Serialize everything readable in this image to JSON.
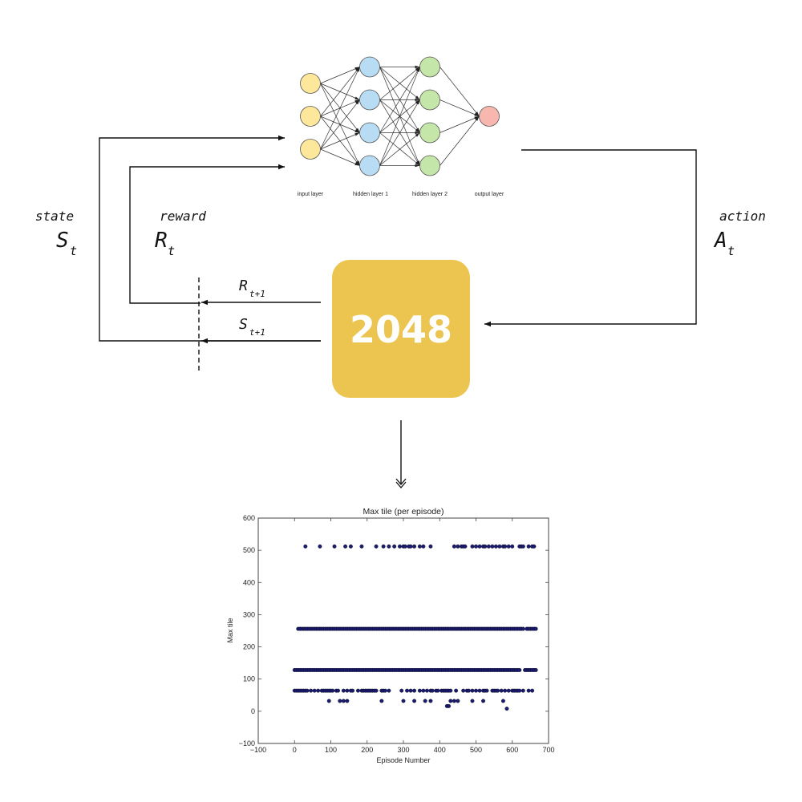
{
  "loop": {
    "state": {
      "word": "state",
      "symbol": "S",
      "sub": "t"
    },
    "reward": {
      "word": "reward",
      "symbol": "R",
      "sub": "t"
    },
    "action": {
      "word": "action",
      "symbol": "A",
      "sub": "t"
    },
    "next_reward": {
      "symbol": "R",
      "sub": "t+1"
    },
    "next_state": {
      "symbol": "S",
      "sub": "t+1"
    }
  },
  "network": {
    "layers": [
      {
        "name": "input layer",
        "nodes": 3,
        "color": "#fde79a"
      },
      {
        "name": "hidden layer 1",
        "nodes": 4,
        "color": "#b8dcf3"
      },
      {
        "name": "hidden layer 2",
        "nodes": 4,
        "color": "#c5e6a9"
      },
      {
        "name": "output layer",
        "nodes": 1,
        "color": "#f8b7ae"
      }
    ]
  },
  "tile": {
    "label": "2048",
    "color": "#ebc550"
  },
  "chart_data": {
    "type": "scatter",
    "title": "Max tile (per episode)",
    "xlabel": "Episode Number",
    "ylabel": "Max tile",
    "xlim": [
      -100,
      700
    ],
    "ylim": [
      -100,
      600
    ],
    "xticks": [
      -100,
      0,
      100,
      200,
      300,
      400,
      500,
      600,
      700
    ],
    "yticks": [
      -100,
      0,
      100,
      200,
      300,
      400,
      500,
      600
    ],
    "grid": false,
    "marker_color": "#1a1a6e",
    "series": [
      {
        "y": 512,
        "x": [
          30,
          70,
          110,
          140,
          155,
          185,
          225,
          245,
          260,
          275,
          290,
          300,
          305,
          315,
          320,
          330,
          345,
          355,
          375,
          440,
          450,
          460,
          465,
          470,
          490,
          500,
          510,
          520,
          525,
          535,
          545,
          555,
          565,
          575,
          580,
          590,
          600,
          620,
          625,
          630,
          645,
          655,
          660
        ]
      },
      {
        "y": 256,
        "x": [
          10,
          15,
          20,
          25,
          30,
          35,
          40,
          45,
          50,
          55,
          60,
          65,
          70,
          75,
          80,
          85,
          90,
          95,
          100,
          105,
          110,
          115,
          120,
          125,
          130,
          135,
          140,
          145,
          150,
          155,
          160,
          165,
          170,
          175,
          180,
          185,
          190,
          195,
          200,
          205,
          210,
          215,
          220,
          225,
          230,
          235,
          240,
          245,
          250,
          255,
          260,
          265,
          270,
          275,
          280,
          285,
          290,
          295,
          300,
          305,
          310,
          315,
          320,
          325,
          330,
          335,
          340,
          345,
          350,
          355,
          360,
          365,
          370,
          375,
          380,
          385,
          390,
          395,
          400,
          405,
          410,
          415,
          420,
          425,
          430,
          435,
          440,
          445,
          450,
          455,
          460,
          465,
          470,
          475,
          480,
          485,
          490,
          495,
          500,
          505,
          510,
          515,
          520,
          525,
          530,
          535,
          540,
          545,
          550,
          555,
          560,
          565,
          570,
          575,
          580,
          585,
          590,
          595,
          600,
          605,
          610,
          615,
          620,
          625,
          630,
          640,
          645,
          650,
          655,
          660,
          665
        ]
      },
      {
        "y": 128,
        "x": [
          0,
          5,
          10,
          15,
          20,
          25,
          30,
          35,
          40,
          45,
          50,
          55,
          60,
          65,
          70,
          75,
          80,
          85,
          90,
          95,
          100,
          105,
          110,
          115,
          120,
          125,
          130,
          135,
          140,
          145,
          150,
          155,
          160,
          165,
          170,
          175,
          180,
          185,
          190,
          195,
          200,
          205,
          210,
          215,
          220,
          225,
          230,
          235,
          240,
          245,
          250,
          255,
          260,
          265,
          270,
          275,
          280,
          285,
          290,
          295,
          300,
          305,
          310,
          315,
          320,
          325,
          330,
          335,
          340,
          345,
          350,
          355,
          360,
          365,
          370,
          375,
          380,
          385,
          390,
          395,
          400,
          405,
          410,
          415,
          420,
          425,
          430,
          435,
          440,
          445,
          450,
          455,
          460,
          465,
          470,
          475,
          480,
          485,
          490,
          495,
          500,
          505,
          510,
          515,
          520,
          525,
          530,
          535,
          540,
          545,
          550,
          555,
          560,
          565,
          570,
          575,
          580,
          585,
          590,
          595,
          600,
          605,
          610,
          615,
          620,
          635,
          640,
          645,
          650,
          655,
          660,
          665
        ]
      },
      {
        "y": 64,
        "x": [
          0,
          5,
          10,
          15,
          20,
          25,
          30,
          35,
          45,
          55,
          65,
          75,
          80,
          85,
          90,
          95,
          100,
          105,
          115,
          120,
          135,
          145,
          155,
          160,
          175,
          185,
          190,
          195,
          200,
          205,
          210,
          215,
          220,
          225,
          240,
          245,
          250,
          260,
          295,
          310,
          320,
          330,
          345,
          355,
          365,
          375,
          380,
          390,
          395,
          405,
          410,
          415,
          420,
          425,
          430,
          445,
          465,
          475,
          480,
          490,
          500,
          510,
          520,
          525,
          530,
          545,
          550,
          555,
          560,
          570,
          580,
          590,
          600,
          605,
          610,
          615,
          620,
          630,
          645,
          655
        ]
      },
      {
        "y": 32,
        "x": [
          95,
          125,
          135,
          145,
          240,
          300,
          330,
          360,
          375,
          430,
          440,
          450,
          490,
          520,
          575
        ]
      },
      {
        "y": 16,
        "x": [
          420,
          425
        ]
      },
      {
        "y": 8,
        "x": [
          585
        ]
      }
    ]
  }
}
